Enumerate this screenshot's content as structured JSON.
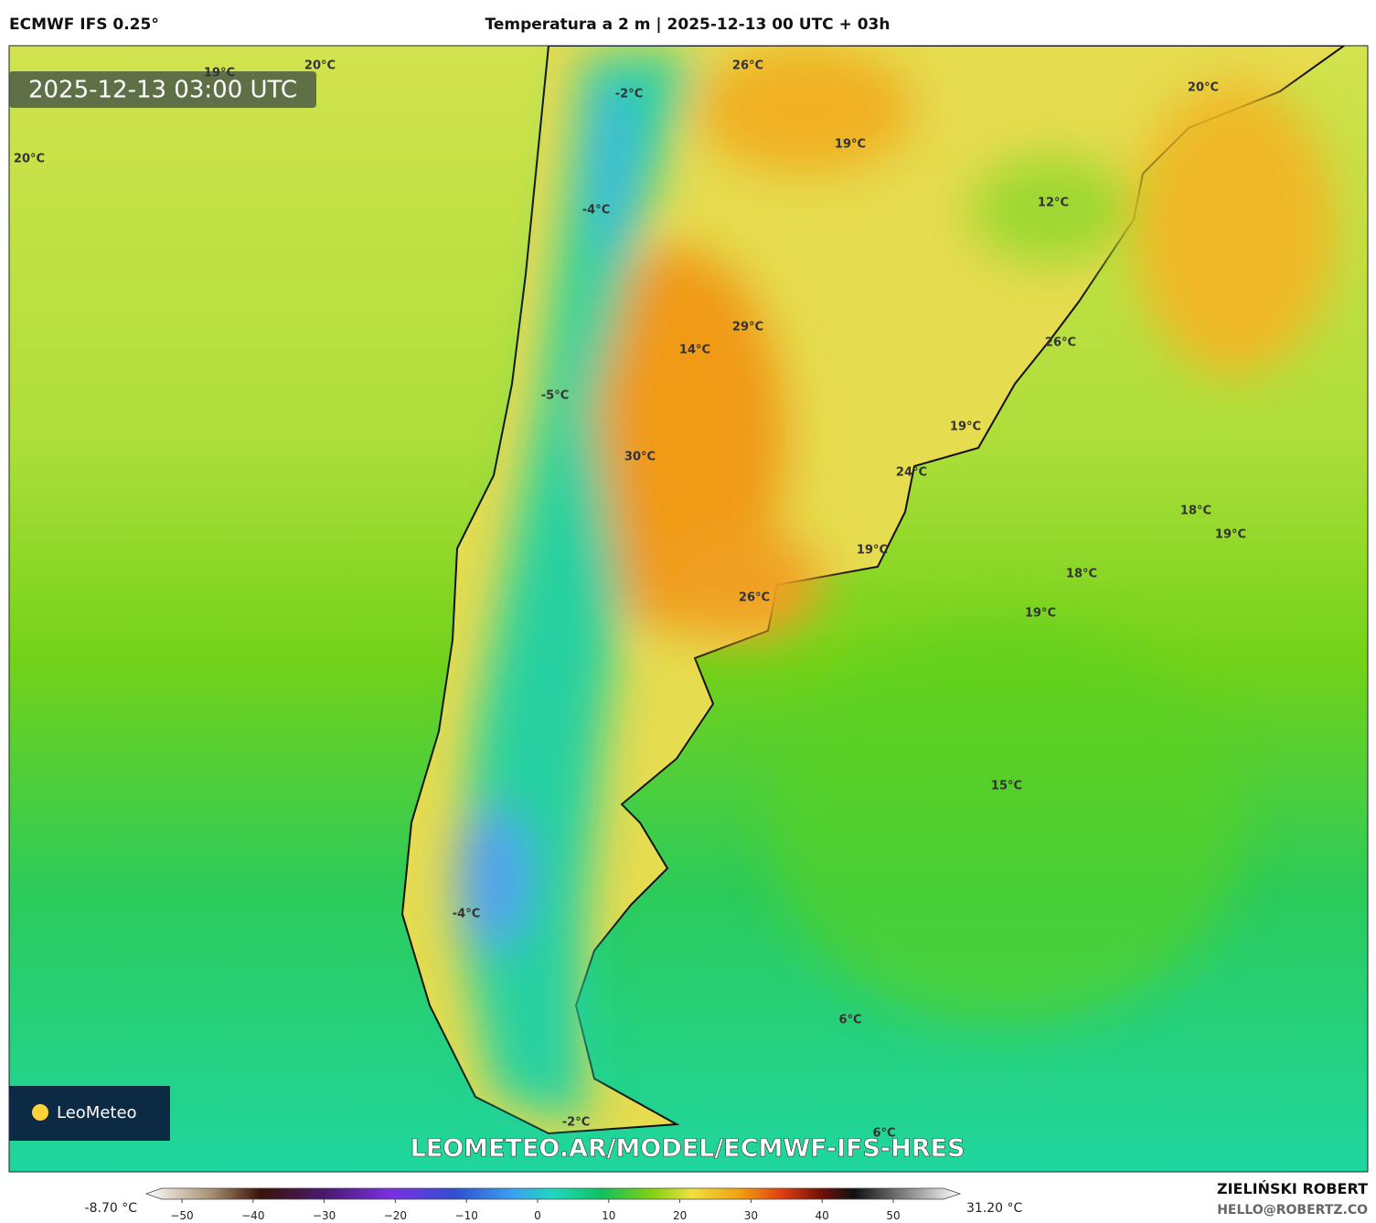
{
  "header": {
    "model": "ECMWF IFS 0.25°",
    "title": "Temperatura a 2 m | 2025-12-13 00 UTC + 03h"
  },
  "map": {
    "timestamp": "2025-12-13 03:00 UTC",
    "watermark": "LEOMETEO.AR/MODEL/ECMWF-IFS-HRES",
    "logo": "LeoMeteo",
    "labels": [
      "19°C",
      "20°C",
      "-2°C",
      "26°C",
      "20°C",
      "20°C",
      "19°C",
      "12°C",
      "-4°C",
      "29°C",
      "14°C",
      "26°C",
      "-5°C",
      "19°C",
      "30°C",
      "24°C",
      "18°C",
      "19°C",
      "19°C",
      "18°C",
      "26°C",
      "19°C",
      "15°C",
      "-4°C",
      "6°C",
      "-2°C",
      "6°C"
    ]
  },
  "colorbar": {
    "min_label": "-8.70 °C",
    "max_label": "31.20 °C",
    "ticks": [
      "−50",
      "−40",
      "−30",
      "−20",
      "−10",
      "0",
      "10",
      "20",
      "30",
      "40",
      "50"
    ]
  },
  "credits": {
    "author": "ZIELIŃSKI ROBERT",
    "email": "HELLO@ROBERTZ.CO"
  }
}
